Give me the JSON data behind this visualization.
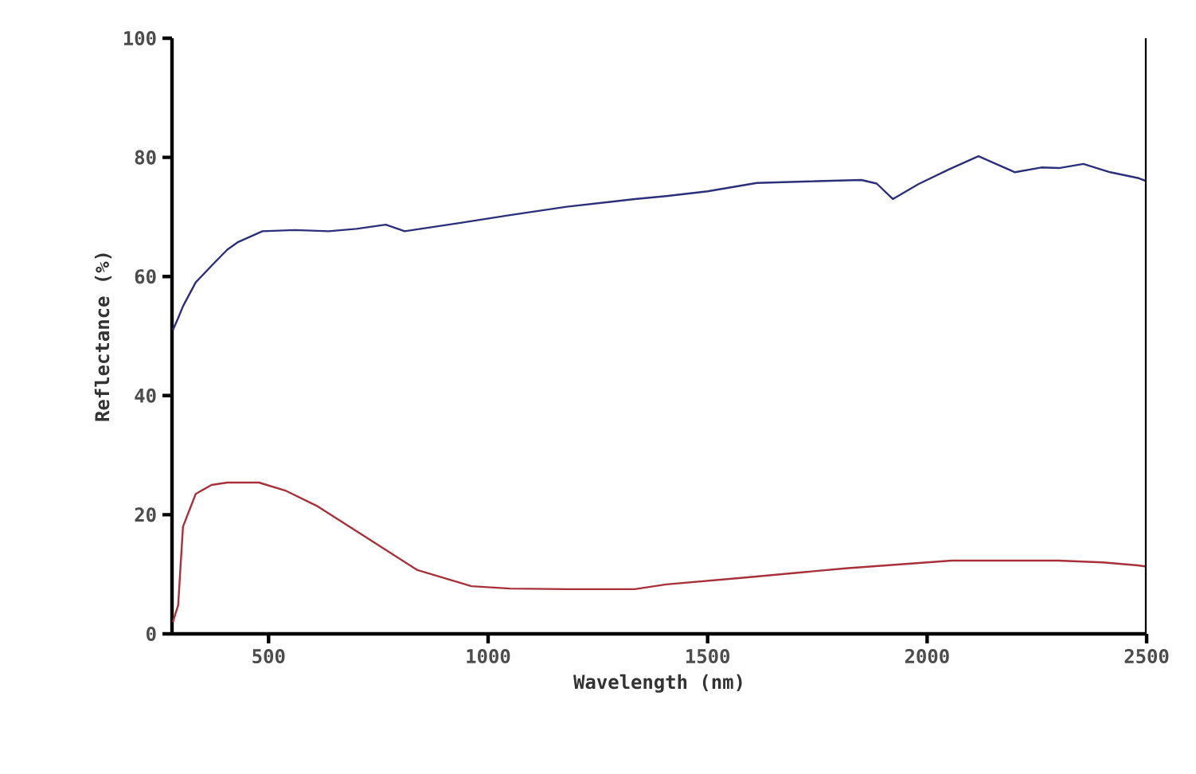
{
  "chart_data": {
    "type": "line",
    "xlabel": "Wavelength (nm)",
    "ylabel": "Reflectance (%)",
    "xlim": [
      280,
      2500
    ],
    "ylim": [
      0,
      100
    ],
    "xticks": [
      500,
      1000,
      1500,
      2000,
      2500
    ],
    "yticks": [
      0,
      20,
      40,
      60,
      80,
      100
    ],
    "series": [
      {
        "color": "#2c2f7a",
        "x": [
          282,
          294,
          305,
          334,
          370,
          406,
          431,
          486,
          560,
          637,
          700,
          767,
          810,
          937,
          1050,
          1179,
          1334,
          1406,
          1500,
          1612,
          1750,
          1850,
          1885,
          1922,
          1980,
          2050,
          2117,
          2160,
          2200,
          2260,
          2300,
          2356,
          2417,
          2482,
          2500
        ],
        "values": [
          51,
          53,
          55,
          59,
          61.8,
          64.5,
          65.8,
          67.6,
          67.8,
          67.6,
          68,
          68.7,
          67.6,
          69,
          70.3,
          71.7,
          73,
          73.5,
          74.3,
          75.7,
          76,
          76.2,
          75.6,
          73,
          75.5,
          78,
          80.2,
          78.8,
          77.5,
          78.3,
          78.2,
          78.9,
          77.5,
          76.5,
          76
        ]
      },
      {
        "color": "#a8303a",
        "x": [
          282,
          294,
          305,
          334,
          370,
          406,
          478,
          540,
          612,
          720,
          839,
          962,
          1050,
          1179,
          1334,
          1406,
          1576,
          1814,
          2056,
          2298,
          2400,
          2480,
          2500
        ],
        "values": [
          2,
          4.8,
          18,
          23.5,
          25,
          25.4,
          25.4,
          24,
          21.4,
          16.3,
          10.7,
          8,
          7.6,
          7.5,
          7.5,
          8.3,
          9.4,
          11,
          12.3,
          12.3,
          12,
          11.5,
          11.3
        ]
      }
    ],
    "grid": false,
    "legend": false,
    "line_style": "solid",
    "marker": "none"
  }
}
